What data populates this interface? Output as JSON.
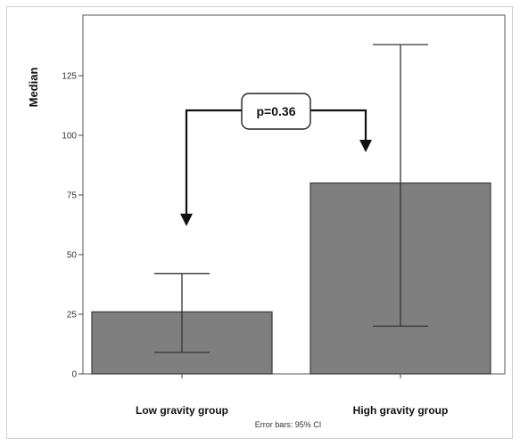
{
  "chart_data": {
    "type": "bar",
    "categories": [
      "Low gravity group",
      "High gravity group"
    ],
    "values": [
      26,
      80
    ],
    "error_bars": [
      {
        "low": 9,
        "high": 42
      },
      {
        "low": 20,
        "high": 138
      }
    ],
    "ylabel": "Median",
    "xlabel": "",
    "ylim": [
      0,
      148
    ],
    "yticks": [
      0,
      25,
      50,
      75,
      100,
      125
    ],
    "grid": false,
    "footnote": "Error bars: 95% CI",
    "annotation": "p=0.36",
    "colors": {
      "bar": "#7f7f7f",
      "bar_edge": "#3a3a3a",
      "axis": "#444444"
    }
  }
}
